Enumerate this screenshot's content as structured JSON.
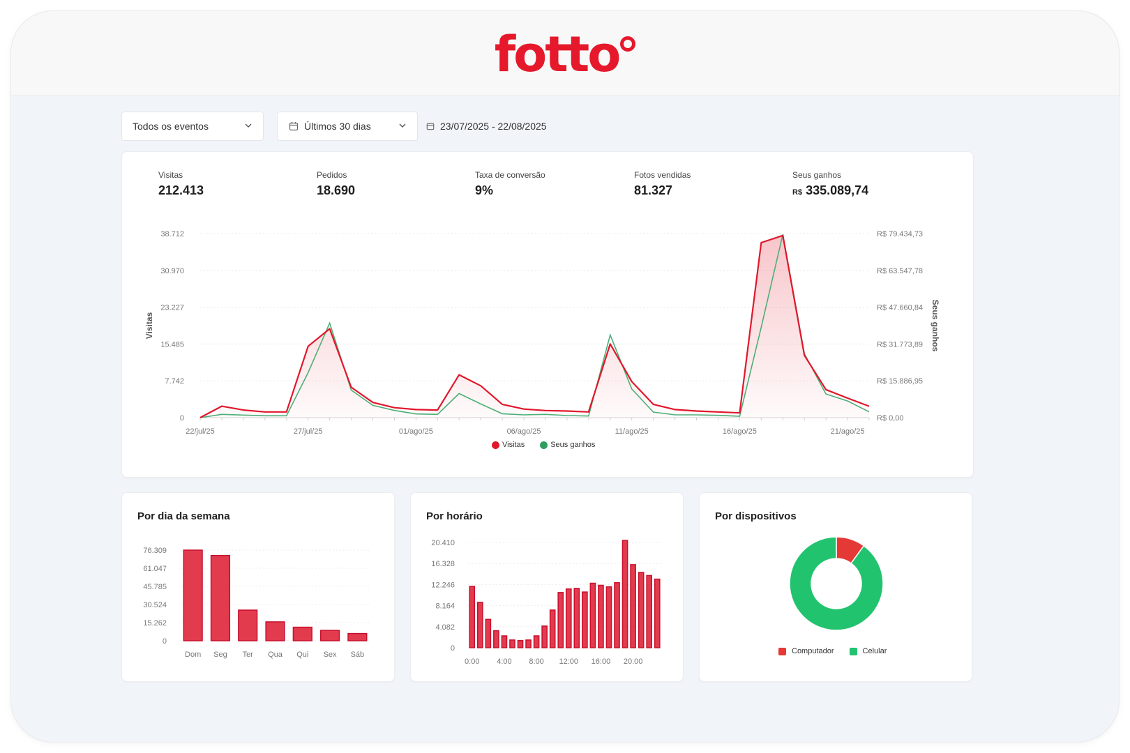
{
  "brand": {
    "name": "fotto",
    "color": "#e5192b"
  },
  "filters": {
    "event_select": "Todos os eventos",
    "period_select": "Últimos 30 dias",
    "date_range": "23/07/2025 - 22/08/2025"
  },
  "kpis": [
    {
      "label": "Visitas",
      "value": "212.413"
    },
    {
      "label": "Pedidos",
      "value": "18.690"
    },
    {
      "label": "Taxa de conversão",
      "value": "9%"
    },
    {
      "label": "Fotos vendidas",
      "value": "81.327"
    },
    {
      "label": "Seus ganhos",
      "currency": "R$",
      "value": "335.089,74"
    }
  ],
  "main_chart": {
    "left_axis_title": "Visitas",
    "right_axis_title": "Seus ganhos",
    "left_ticks": [
      "38.712",
      "30.970",
      "23.227",
      "15.485",
      "7.742",
      "0"
    ],
    "right_ticks": [
      "R$ 79.434,73",
      "R$ 63.547,78",
      "R$ 47.660,84",
      "R$ 31.773,89",
      "R$ 15.886,95",
      "R$ 0,00"
    ],
    "x_labels": [
      "22/jul/25",
      "27/jul/25",
      "01/ago/25",
      "06/ago/25",
      "11/ago/25",
      "16/ago/25",
      "21/ago/25"
    ],
    "legend": {
      "visits": "Visitas",
      "earnings": "Seus ganhos"
    }
  },
  "chart_data": [
    {
      "type": "area",
      "title": "",
      "x": [
        "22/jul",
        "23/jul",
        "24/jul",
        "25/jul",
        "26/jul",
        "27/jul",
        "28/jul",
        "29/jul",
        "30/jul",
        "31/jul",
        "01/ago",
        "02/ago",
        "03/ago",
        "04/ago",
        "05/ago",
        "06/ago",
        "07/ago",
        "08/ago",
        "09/ago",
        "10/ago",
        "11/ago",
        "12/ago",
        "13/ago",
        "14/ago",
        "15/ago",
        "16/ago",
        "17/ago",
        "18/ago",
        "19/ago",
        "20/ago",
        "21/ago",
        "22/ago"
      ],
      "series": [
        {
          "name": "Visitas",
          "axis": "left",
          "color": "#e0182b",
          "values": [
            0,
            2400,
            1600,
            1200,
            1200,
            15000,
            18700,
            6400,
            3200,
            2100,
            1700,
            1600,
            9000,
            6700,
            2800,
            1800,
            1500,
            1400,
            1200,
            15500,
            7600,
            2800,
            1700,
            1400,
            1200,
            1000,
            36800,
            38300,
            13100,
            5900,
            4100,
            2400
          ]
        },
        {
          "name": "Seus ganhos",
          "axis": "right",
          "color": "#4caf78",
          "values": [
            0,
            1400,
            1100,
            800,
            800,
            19400,
            40800,
            11900,
            5300,
            3100,
            1600,
            1400,
            10400,
            5900,
            1700,
            1200,
            1400,
            900,
            700,
            35700,
            12400,
            2400,
            1200,
            1200,
            1000,
            600,
            39000,
            79100,
            27600,
            10200,
            7200,
            2500
          ]
        }
      ],
      "xlabel": "",
      "ylabel": "Visitas",
      "ylabel_right": "Seus ganhos",
      "ylim": [
        0,
        38712
      ],
      "ylim_right": [
        0,
        79434.73
      ]
    },
    {
      "type": "bar",
      "title": "Por dia da semana",
      "categories": [
        "Dom",
        "Seg",
        "Ter",
        "Qua",
        "Qui",
        "Sex",
        "Sáb"
      ],
      "values": [
        76309,
        71800,
        25800,
        15900,
        11400,
        8700,
        6100
      ],
      "y_ticks": [
        "76.309",
        "61.047",
        "45.785",
        "30.524",
        "15.262",
        "0"
      ],
      "ylim": [
        0,
        76309
      ]
    },
    {
      "type": "bar",
      "title": "Por horário",
      "categories": [
        "0:00",
        "1:00",
        "2:00",
        "3:00",
        "4:00",
        "5:00",
        "6:00",
        "7:00",
        "8:00",
        "9:00",
        "10:00",
        "11:00",
        "12:00",
        "13:00",
        "14:00",
        "15:00",
        "16:00",
        "17:00",
        "18:00",
        "19:00",
        "20:00",
        "21:00",
        "22:00",
        "23:00"
      ],
      "x_tick_labels": [
        "0:00",
        "4:00",
        "8:00",
        "12:00",
        "16:00",
        "20:00"
      ],
      "values": [
        11900,
        8800,
        5500,
        3300,
        2300,
        1500,
        1400,
        1500,
        2300,
        4200,
        7300,
        10700,
        11400,
        11500,
        10800,
        12500,
        12100,
        11800,
        12600,
        20800,
        16100,
        14600,
        14000,
        13300
      ],
      "y_ticks": [
        "20.410",
        "16.328",
        "12.246",
        "8.164",
        "4.082",
        "0"
      ],
      "ylim": [
        0,
        20410
      ]
    },
    {
      "type": "pie",
      "title": "Por dispositivos",
      "categories": [
        "Computador",
        "Celular"
      ],
      "values": [
        10,
        90
      ],
      "colors": [
        "#e53935",
        "#22c36e"
      ]
    }
  ]
}
